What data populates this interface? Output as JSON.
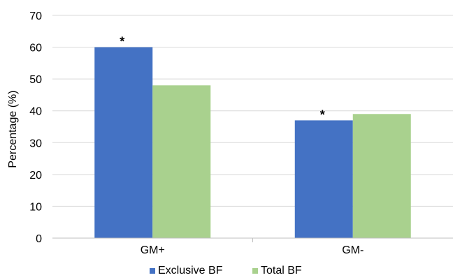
{
  "chart_data": {
    "type": "bar",
    "title": "",
    "xlabel": "",
    "ylabel": "Percentage (%)",
    "ylim": [
      0,
      70
    ],
    "yticks": [
      0,
      10,
      20,
      30,
      40,
      50,
      60,
      70
    ],
    "grid": true,
    "legend_position": "bottom",
    "categories": [
      "GM+",
      "GM-"
    ],
    "series": [
      {
        "name": "Exclusive BF",
        "color": "#4472c4",
        "values": [
          60,
          37
        ]
      },
      {
        "name": "Total BF",
        "color": "#a9d18e",
        "values": [
          48,
          39
        ]
      }
    ],
    "annotations": [
      {
        "text": "*",
        "series": 0,
        "category": 0
      },
      {
        "text": "*",
        "series": 0,
        "category": 1
      }
    ]
  }
}
